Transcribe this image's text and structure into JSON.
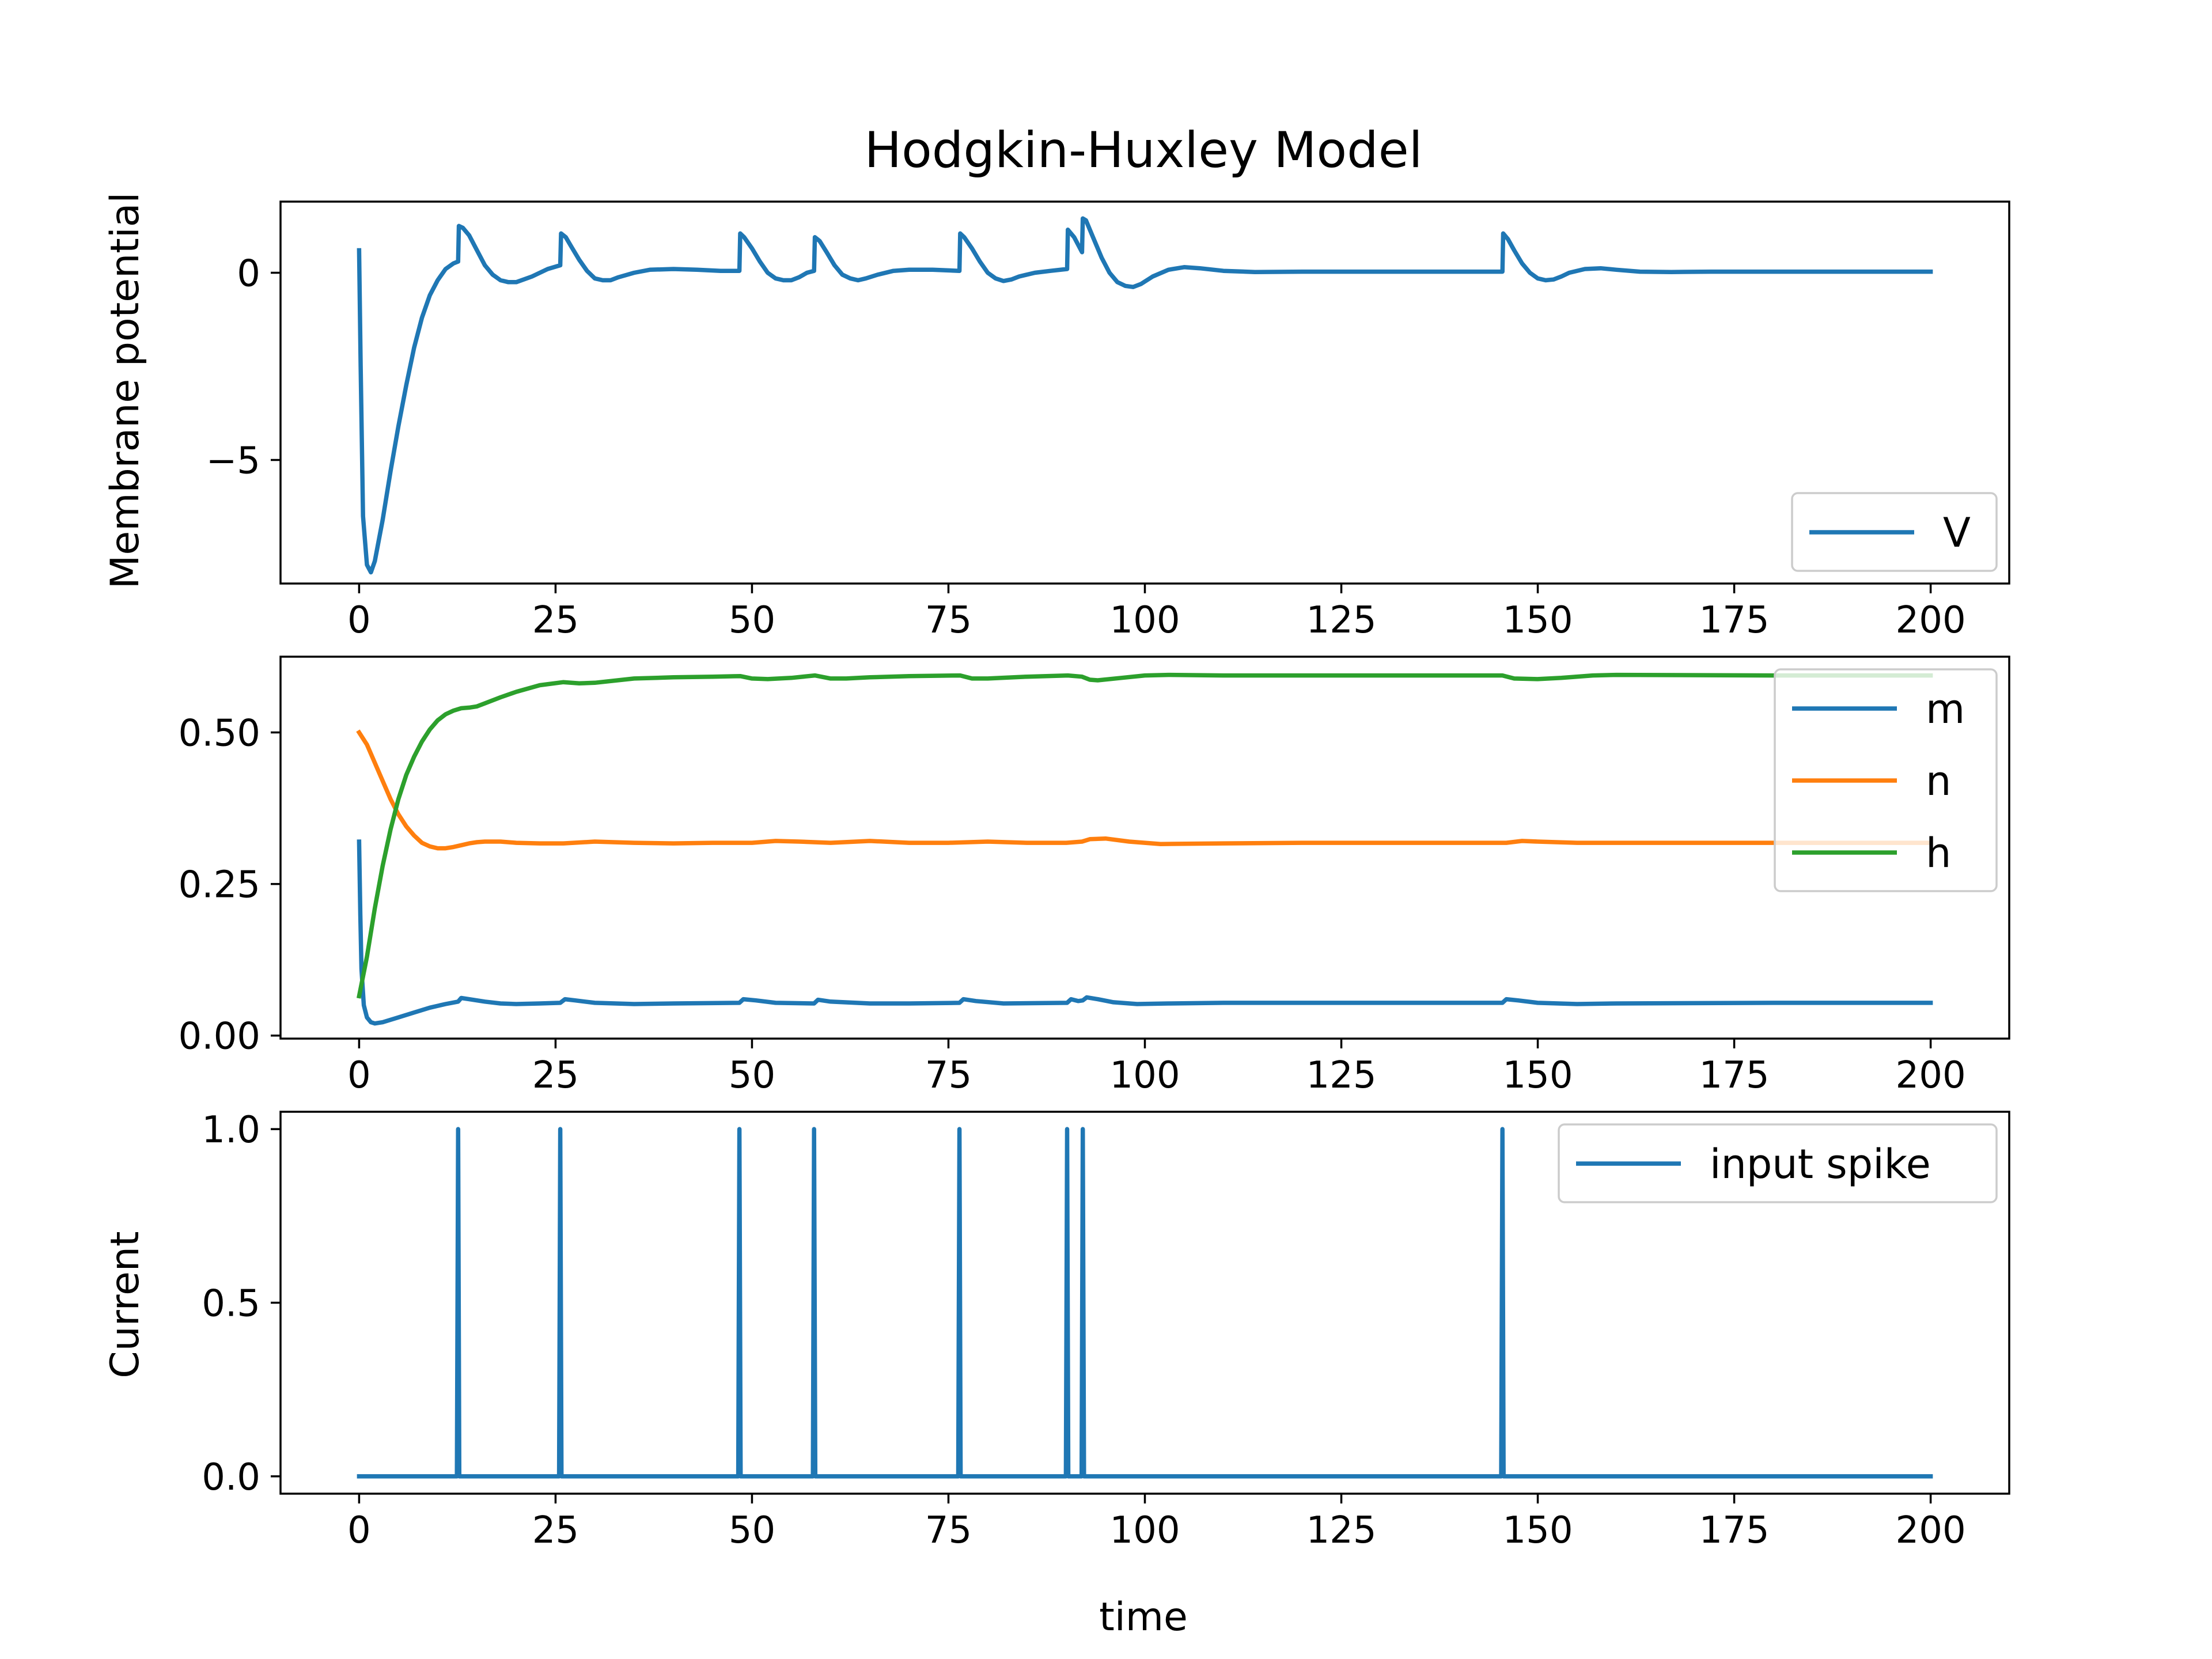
{
  "chart_data": [
    {
      "type": "line",
      "title": "Hodgkin-Huxley Model",
      "xlabel": "",
      "ylabel": "Membrane potential",
      "xlim": [
        -10,
        210
      ],
      "ylim": [
        -8.3,
        1.9
      ],
      "xticks": [
        0,
        25,
        50,
        75,
        100,
        125,
        150,
        175,
        200
      ],
      "xtick_labels": [
        "0",
        "25",
        "50",
        "75",
        "100",
        "125",
        "150",
        "175",
        "200"
      ],
      "yticks": [
        0,
        -5
      ],
      "ytick_labels": [
        "0",
        "−5"
      ],
      "legend": "lower right",
      "grid": false,
      "series": [
        {
          "name": "V",
          "color": "#1f77b4",
          "x": [
            0,
            0.2,
            0.5,
            1.0,
            1.5,
            2.0,
            3.0,
            4.0,
            5.0,
            6.0,
            7.0,
            8.0,
            9.0,
            10.0,
            11.0,
            12.0,
            12.6,
            12.7,
            13.2,
            14.0,
            15.0,
            16.0,
            17.0,
            18.0,
            19.0,
            20.0,
            22.0,
            24.0,
            25.6,
            25.7,
            26.3,
            27.0,
            28.0,
            29.0,
            30.0,
            31.0,
            32.0,
            33.0,
            35.0,
            37.0,
            40.0,
            43.0,
            46.0,
            48.4,
            48.5,
            49.0,
            50.0,
            51.0,
            52.0,
            53.0,
            54.0,
            55.0,
            56.0,
            57.0,
            57.9,
            58.0,
            58.6,
            59.5,
            60.5,
            61.5,
            62.5,
            63.5,
            64.5,
            66.0,
            68.0,
            70.0,
            73.0,
            76.4,
            76.5,
            77.0,
            78.0,
            79.0,
            80.0,
            81.0,
            82.0,
            83.0,
            84.0,
            86.0,
            88.0,
            90.1,
            90.2,
            91.0,
            92.0,
            92.1,
            92.5,
            93.5,
            94.5,
            95.5,
            96.5,
            97.5,
            98.5,
            99.5,
            101.0,
            103.0,
            105.0,
            107.0,
            110.0,
            114.0,
            120.0,
            130.0,
            140.0,
            145.5,
            145.6,
            146.2,
            147.0,
            148.0,
            149.0,
            150.0,
            151.0,
            152.0,
            153.0,
            154.0,
            156.0,
            158.0,
            160.0,
            163.0,
            167.0,
            172.0,
            180.0,
            190.0,
            200.0
          ],
          "y": [
            0.6,
            -2.5,
            -6.5,
            -7.8,
            -8.0,
            -7.7,
            -6.6,
            -5.3,
            -4.1,
            -3.0,
            -2.0,
            -1.2,
            -0.6,
            -0.2,
            0.1,
            0.25,
            0.3,
            1.25,
            1.2,
            1.0,
            0.6,
            0.2,
            -0.05,
            -0.2,
            -0.25,
            -0.25,
            -0.1,
            0.1,
            0.2,
            1.05,
            0.95,
            0.7,
            0.35,
            0.05,
            -0.15,
            -0.2,
            -0.2,
            -0.12,
            0.0,
            0.08,
            0.1,
            0.08,
            0.05,
            0.05,
            1.05,
            0.95,
            0.65,
            0.3,
            0.0,
            -0.15,
            -0.2,
            -0.2,
            -0.12,
            0.0,
            0.05,
            0.95,
            0.85,
            0.55,
            0.2,
            -0.05,
            -0.15,
            -0.2,
            -0.15,
            -0.05,
            0.05,
            0.08,
            0.08,
            0.05,
            1.05,
            0.95,
            0.65,
            0.3,
            0.0,
            -0.15,
            -0.22,
            -0.18,
            -0.1,
            0.0,
            0.05,
            0.1,
            1.15,
            0.95,
            0.55,
            1.45,
            1.4,
            0.9,
            0.4,
            0.0,
            -0.25,
            -0.35,
            -0.38,
            -0.3,
            -0.1,
            0.08,
            0.15,
            0.12,
            0.05,
            0.02,
            0.03,
            0.03,
            0.03,
            0.03,
            1.05,
            0.9,
            0.6,
            0.25,
            0.0,
            -0.15,
            -0.2,
            -0.18,
            -0.1,
            0.0,
            0.1,
            0.12,
            0.08,
            0.03,
            0.02,
            0.03,
            0.03,
            0.03,
            0.03
          ]
        }
      ]
    },
    {
      "type": "line",
      "title": "",
      "xlabel": "",
      "ylabel": "",
      "xlim": [
        -10,
        210
      ],
      "ylim": [
        -0.005,
        0.625
      ],
      "xticks": [
        0,
        25,
        50,
        75,
        100,
        125,
        150,
        175,
        200
      ],
      "xtick_labels": [
        "0",
        "25",
        "50",
        "75",
        "100",
        "125",
        "150",
        "175",
        "200"
      ],
      "yticks": [
        0.0,
        0.25,
        0.5
      ],
      "ytick_labels": [
        "0.00",
        "0.25",
        "0.50"
      ],
      "legend": "upper right",
      "grid": false,
      "series": [
        {
          "name": "m",
          "color": "#1f77b4",
          "x": [
            0,
            0.15,
            0.3,
            0.6,
            1.0,
            1.5,
            2.0,
            3.0,
            5.0,
            7.0,
            9.0,
            11.0,
            12.6,
            13.0,
            14.0,
            16.0,
            18.0,
            20.0,
            23.0,
            25.6,
            26.2,
            27.5,
            30.0,
            35.0,
            40.0,
            48.4,
            48.9,
            50.5,
            53.0,
            57.9,
            58.4,
            60.0,
            65.0,
            70.0,
            76.4,
            76.9,
            78.5,
            82.0,
            90.1,
            90.6,
            91.5,
            92.1,
            92.6,
            94.0,
            96.0,
            99.0,
            103.0,
            110.0,
            120.0,
            145.5,
            146.0,
            147.5,
            150.0,
            155.0,
            160.0,
            180.0,
            200.0
          ],
          "y": [
            0.32,
            0.2,
            0.11,
            0.05,
            0.03,
            0.022,
            0.02,
            0.022,
            0.03,
            0.038,
            0.046,
            0.052,
            0.056,
            0.062,
            0.06,
            0.056,
            0.053,
            0.052,
            0.053,
            0.054,
            0.06,
            0.058,
            0.054,
            0.052,
            0.053,
            0.054,
            0.06,
            0.058,
            0.054,
            0.053,
            0.059,
            0.056,
            0.053,
            0.053,
            0.054,
            0.06,
            0.057,
            0.053,
            0.054,
            0.06,
            0.057,
            0.058,
            0.063,
            0.06,
            0.055,
            0.052,
            0.053,
            0.054,
            0.054,
            0.054,
            0.06,
            0.058,
            0.054,
            0.052,
            0.053,
            0.054,
            0.054
          ]
        },
        {
          "name": "n",
          "color": "#ff7f0e",
          "x": [
            0,
            1,
            2,
            3,
            4,
            5,
            6,
            7,
            8,
            9,
            10,
            11,
            12,
            13,
            14,
            15,
            16,
            18,
            20,
            23,
            26,
            30,
            35,
            40,
            45,
            50,
            53,
            56,
            60,
            65,
            70,
            75,
            80,
            85,
            90,
            92,
            93,
            95,
            98,
            102,
            110,
            120,
            140,
            146,
            148,
            150,
            155,
            160,
            180,
            200
          ],
          "y": [
            0.5,
            0.48,
            0.45,
            0.42,
            0.39,
            0.365,
            0.345,
            0.33,
            0.318,
            0.312,
            0.309,
            0.309,
            0.311,
            0.314,
            0.317,
            0.319,
            0.32,
            0.32,
            0.318,
            0.317,
            0.317,
            0.32,
            0.318,
            0.317,
            0.318,
            0.318,
            0.321,
            0.32,
            0.318,
            0.321,
            0.318,
            0.318,
            0.32,
            0.318,
            0.318,
            0.32,
            0.324,
            0.325,
            0.32,
            0.316,
            0.317,
            0.318,
            0.318,
            0.318,
            0.321,
            0.32,
            0.318,
            0.318,
            0.318,
            0.318
          ]
        },
        {
          "name": "h",
          "color": "#2ca02c",
          "x": [
            0,
            1,
            2,
            3,
            4,
            5,
            6,
            7,
            8,
            9,
            10,
            11,
            12,
            13,
            14,
            15,
            16,
            18,
            20,
            23,
            26,
            28,
            30,
            35,
            40,
            45,
            48.5,
            50,
            52,
            55,
            58,
            60,
            62,
            65,
            70,
            76.5,
            78,
            80,
            85,
            90.2,
            92,
            93,
            94,
            97,
            100,
            103,
            110,
            130,
            145.5,
            147,
            150,
            153,
            157,
            160,
            180,
            200
          ],
          "y": [
            0.065,
            0.13,
            0.21,
            0.28,
            0.34,
            0.39,
            0.43,
            0.46,
            0.485,
            0.505,
            0.52,
            0.53,
            0.536,
            0.54,
            0.541,
            0.543,
            0.548,
            0.558,
            0.567,
            0.578,
            0.583,
            0.581,
            0.582,
            0.589,
            0.591,
            0.592,
            0.593,
            0.589,
            0.588,
            0.59,
            0.594,
            0.589,
            0.589,
            0.591,
            0.593,
            0.594,
            0.589,
            0.589,
            0.592,
            0.594,
            0.592,
            0.587,
            0.586,
            0.59,
            0.594,
            0.595,
            0.594,
            0.594,
            0.594,
            0.589,
            0.588,
            0.59,
            0.594,
            0.595,
            0.594,
            0.594
          ]
        }
      ]
    },
    {
      "type": "line",
      "title": "",
      "xlabel": "time",
      "ylabel": "Current",
      "xlim": [
        -10,
        210
      ],
      "ylim": [
        -0.05,
        1.05
      ],
      "xticks": [
        0,
        25,
        50,
        75,
        100,
        125,
        150,
        175,
        200
      ],
      "xtick_labels": [
        "0",
        "25",
        "50",
        "75",
        "100",
        "125",
        "150",
        "175",
        "200"
      ],
      "yticks": [
        0.0,
        0.5,
        1.0
      ],
      "ytick_labels": [
        "0.0",
        "0.5",
        "1.0"
      ],
      "legend": "upper right",
      "grid": false,
      "series": [
        {
          "name": "input spike",
          "color": "#1f77b4",
          "spike_times": [
            12.6,
            25.6,
            48.4,
            57.9,
            76.4,
            90.1,
            92.1,
            145.5
          ],
          "x": [
            0,
            12.45,
            12.6,
            12.75,
            25.45,
            25.6,
            25.75,
            48.25,
            48.4,
            48.55,
            57.75,
            57.9,
            58.05,
            76.25,
            76.4,
            76.55,
            89.95,
            90.1,
            90.25,
            91.95,
            92.1,
            92.25,
            145.35,
            145.5,
            145.65,
            200
          ],
          "y": [
            0,
            0,
            1,
            0,
            0,
            1,
            0,
            0,
            1,
            0,
            0,
            1,
            0,
            0,
            1,
            0,
            0,
            1,
            0,
            0,
            1,
            0,
            0,
            1,
            0,
            0
          ]
        }
      ]
    }
  ]
}
